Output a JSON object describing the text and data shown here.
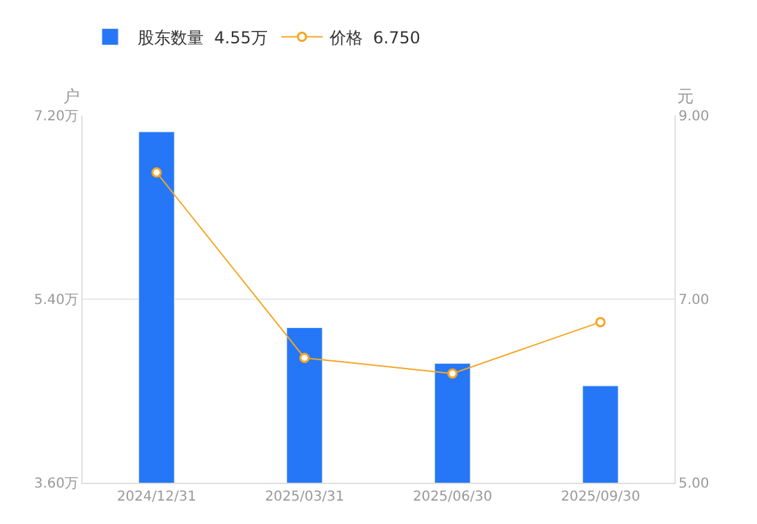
{
  "chart_data": {
    "type": "bar",
    "categories": [
      "2024/12/31",
      "2025/03/31",
      "2025/06/30",
      "2025/09/30"
    ],
    "series": [
      {
        "name": "股东数量  4.55万",
        "color": "#2577f7",
        "values": [
          7.04,
          5.12,
          4.77,
          4.55
        ]
      },
      {
        "name": "价格  6.750",
        "type": "line",
        "axis": "y2",
        "color": "#f5a623",
        "marker": "circle",
        "values": [
          8.38,
          6.36,
          6.19,
          6.75
        ]
      }
    ],
    "ylabel": "户",
    "y2label": "元",
    "ylim": [
      3.6,
      7.2
    ],
    "yticks": [
      {
        "value": 3.6,
        "label": "3.60万"
      },
      {
        "value": 5.4,
        "label": "5.40万"
      },
      {
        "value": 7.2,
        "label": "7.20万"
      }
    ],
    "y2lim": [
      5,
      9
    ],
    "y2ticks": [
      {
        "value": 5,
        "label": "5.00"
      },
      {
        "value": 7,
        "label": "7.00"
      },
      {
        "value": 9,
        "label": "9.00"
      }
    ],
    "grid": "y",
    "legend": "top left"
  }
}
